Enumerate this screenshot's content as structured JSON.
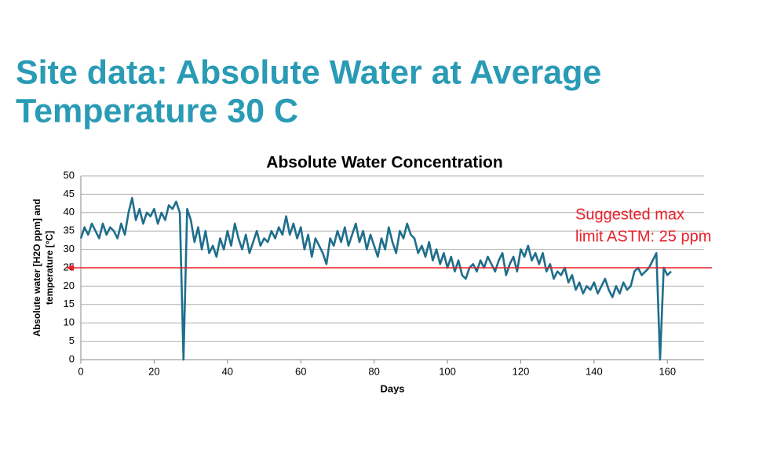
{
  "chart_data": {
    "type": "line",
    "slide_title": [
      "Site data: Absolute Water at Average",
      "Temperature 30 C"
    ],
    "title": "Absolute Water Concentration",
    "ylabel": [
      "Absolute water [H2O ppm] and",
      "temperature [°C]"
    ],
    "xlabel": "Days",
    "x": [
      0,
      1,
      2,
      3,
      4,
      5,
      6,
      7,
      8,
      9,
      10,
      11,
      12,
      13,
      14,
      15,
      16,
      17,
      18,
      19,
      20,
      21,
      22,
      23,
      24,
      25,
      26,
      27,
      28,
      29,
      30,
      31,
      32,
      33,
      34,
      35,
      36,
      37,
      38,
      39,
      40,
      41,
      42,
      43,
      44,
      45,
      46,
      47,
      48,
      49,
      50,
      51,
      52,
      53,
      54,
      55,
      56,
      57,
      58,
      59,
      60,
      61,
      62,
      63,
      64,
      65,
      66,
      67,
      68,
      69,
      70,
      71,
      72,
      73,
      74,
      75,
      76,
      77,
      78,
      79,
      80,
      81,
      82,
      83,
      84,
      85,
      86,
      87,
      88,
      89,
      90,
      91,
      92,
      93,
      94,
      95,
      96,
      97,
      98,
      99,
      100,
      101,
      102,
      103,
      104,
      105,
      106,
      107,
      108,
      109,
      110,
      111,
      112,
      113,
      114,
      115,
      116,
      117,
      118,
      119,
      120,
      121,
      122,
      123,
      124,
      125,
      126,
      127,
      128,
      129,
      130,
      131,
      132,
      133,
      134,
      135,
      136,
      137,
      138,
      139,
      140,
      141,
      142,
      143,
      144,
      145,
      146,
      147,
      148,
      149,
      150,
      151,
      152,
      153,
      154,
      155,
      156,
      157,
      158,
      159,
      160,
      161
    ],
    "series": [
      {
        "color": "#1f6e8c",
        "values": [
          33,
          36,
          34,
          37,
          35,
          33,
          37,
          34,
          36,
          35,
          33,
          37,
          34,
          40,
          44,
          38,
          41,
          37,
          40,
          39,
          41,
          37,
          40,
          38,
          42,
          41,
          43,
          40,
          0,
          41,
          38,
          32,
          36,
          30,
          35,
          29,
          31,
          28,
          33,
          30,
          35,
          31,
          37,
          33,
          30,
          34,
          29,
          32,
          35,
          31,
          33,
          32,
          35,
          33,
          36,
          34,
          39,
          34,
          37,
          33,
          36,
          30,
          34,
          28,
          33,
          31,
          29,
          26,
          33,
          31,
          35,
          32,
          36,
          31,
          34,
          37,
          32,
          35,
          30,
          34,
          31,
          28,
          33,
          30,
          36,
          32,
          29,
          35,
          33,
          37,
          34,
          33,
          29,
          31,
          28,
          32,
          27,
          30,
          26,
          29,
          25,
          28,
          24,
          27,
          23,
          22,
          25,
          26,
          24,
          27,
          25,
          28,
          26,
          24,
          27,
          29,
          23,
          26,
          28,
          24,
          30,
          28,
          31,
          27,
          29,
          26,
          29,
          24,
          26,
          22,
          24,
          23,
          25,
          21,
          23,
          19,
          21,
          18,
          20,
          19,
          21,
          18,
          20,
          22,
          19,
          17,
          20,
          18,
          21,
          19,
          20,
          24,
          25,
          23,
          24,
          25,
          27,
          29,
          0,
          25,
          23,
          24
        ]
      }
    ],
    "xlim": [
      0,
      170
    ],
    "xticks": [
      0,
      20,
      40,
      60,
      80,
      100,
      120,
      140,
      160
    ],
    "ylim": [
      0,
      50
    ],
    "yticks": [
      0,
      5,
      10,
      15,
      20,
      25,
      30,
      35,
      40,
      45,
      50
    ],
    "grid": true,
    "reference_line": {
      "value": 25,
      "color": "#e8202a",
      "label": [
        "Suggested max",
        "limit ASTM: 25 ppm"
      ]
    }
  }
}
